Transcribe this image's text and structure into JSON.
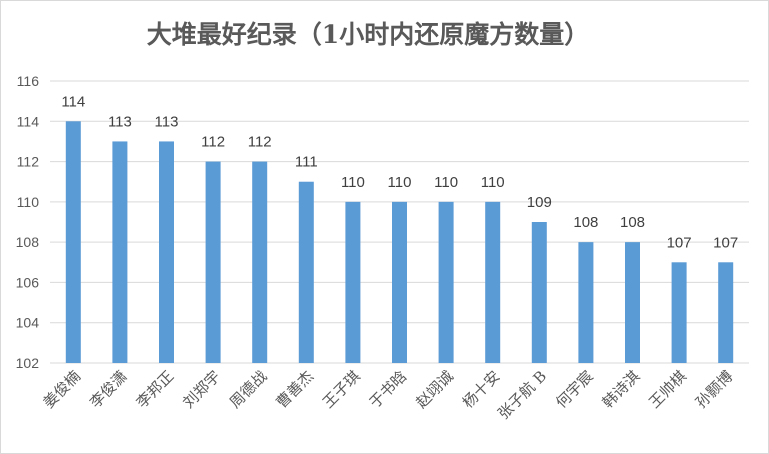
{
  "chart_data": {
    "type": "bar",
    "title": "大堆最好纪录（1小时内还原魔方数量）",
    "xlabel": "",
    "ylabel": "",
    "categories": [
      "姜俊楠",
      "李俊潇",
      "李邦正",
      "刘郑宇",
      "周德战",
      "曹善杰",
      "王子琪",
      "于书晗",
      "赵翊诚",
      "杨十安",
      "张子航 B",
      "何宇宸",
      "韩诗淇",
      "王帅棋",
      "孙颢博"
    ],
    "values": [
      114,
      113,
      113,
      112,
      112,
      111,
      110,
      110,
      110,
      110,
      109,
      108,
      108,
      107,
      107
    ],
    "ylim": [
      102,
      116
    ],
    "yticks": [
      102,
      104,
      106,
      108,
      110,
      112,
      114,
      116
    ],
    "grid": true,
    "legend": "none",
    "bar_color": "#5b9bd5",
    "grid_color": "#d9d9d9",
    "text_color": "#595959"
  }
}
